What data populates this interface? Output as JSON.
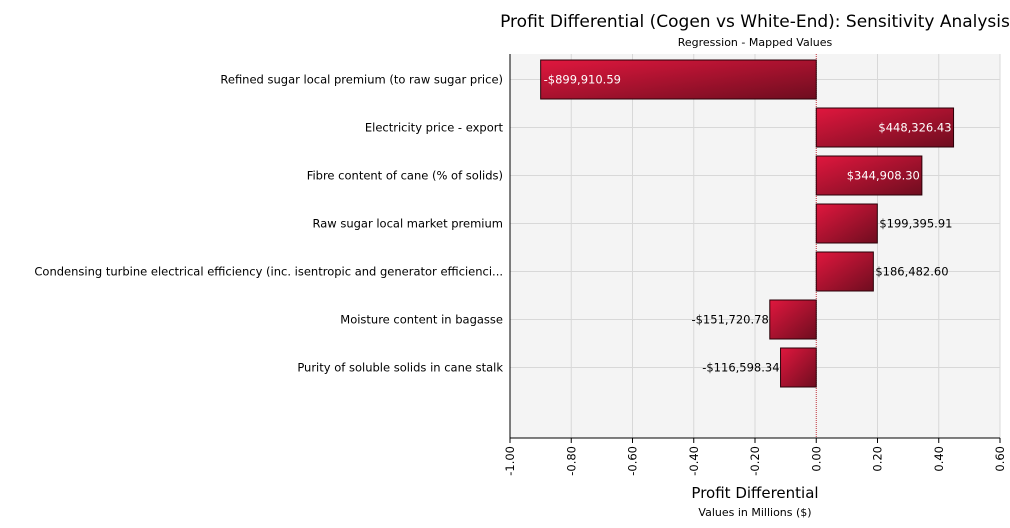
{
  "chart_data": {
    "type": "bar",
    "orientation": "horizontal",
    "title": "Profit Differential (Cogen vs White-End): Sensitivity Analysis",
    "subtitle": "Regression - Mapped Values",
    "xlabel": "Profit Differential",
    "xlabel_sub": "Values in Millions ($)",
    "ylabel": "",
    "xlim": [
      -1.0,
      0.6
    ],
    "xticks": [
      -1.0,
      -0.8,
      -0.6,
      -0.4,
      -0.2,
      0.0,
      0.2,
      0.4,
      0.6
    ],
    "xtick_labels": [
      "-1.00",
      "-0.80",
      "-0.60",
      "-0.40",
      "-0.20",
      "0.00",
      "0.20",
      "0.40",
      "0.60"
    ],
    "grid": true,
    "categories": [
      "Refined sugar local premium (to raw sugar price)",
      "Electricity price - export",
      "Fibre content of cane (% of solids)",
      "Raw sugar local market premium",
      "Condensing turbine electrical efficiency (inc. isentropic and generator efficienci...",
      "Moisture content in bagasse",
      "Purity of soluble solids in cane stalk"
    ],
    "values": [
      -0.89991059,
      0.44832643,
      0.3449083,
      0.19939591,
      0.1864826,
      -0.15172078,
      -0.11659834
    ],
    "data_labels": [
      "-$899,910.59",
      "$448,326.43",
      "$344,908.30",
      "$199,395.91",
      "$186,482.60",
      "-$151,720.78",
      "-$116,598.34"
    ],
    "colors": {
      "bar_light": "#e0173e",
      "bar_dark": "#6e0d1f",
      "plot_bg": "#f4f4f4",
      "grid": "#d8d8d8",
      "zero_line": "#c0303a"
    }
  }
}
